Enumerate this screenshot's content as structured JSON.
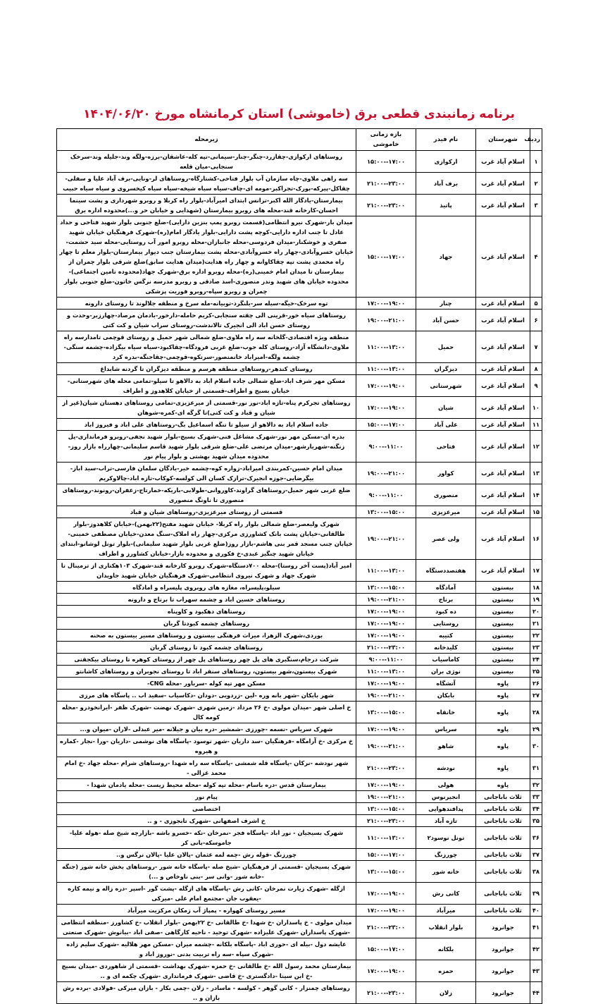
{
  "title": "برنامه زمانبندی قطعی برق (خاموشی) استان کرمانشاه مورخ ۱۴۰۴/۰۶/۲۰",
  "headers": {
    "no": "ردیف",
    "city": "شهرستان",
    "feeder": "نام فیدر",
    "time": "بازه زمانی خاموشی",
    "zone": "زیرمحله"
  },
  "rows": [
    [
      "۱",
      "اسلام آباد غرب",
      "ارکوازی",
      "۱۵:۰۰--۱۷:۰۰",
      "روستاهای ارکوازی-چقازرد-چنگر-چنار-سیمانی-تپه کله-عاشقان-برزه-ولگه وند-جلیله وند-سرخک سنجابی-میان قلعه"
    ],
    [
      "۲",
      "اسلام آباد غرب",
      "برف آباد",
      "۲۱:۰۰--۲۳:۰۰",
      "سه راهی ملاوی-چاه سازمان آب بلوار فتاحی-کشتارگاه-روستاهای لر-ونایی-برف آباد علیا و سفلی-چقاکل-پیرکه-بورک-تجراکبر-مومه ای-چاف-سیاه سیاه شیخه-سیاه سیاه کیخسروی و سیاه سیاه حبیب"
    ],
    [
      "۳",
      "اسلام آباد غرب",
      "پاتیذ",
      "۲۱:۰۰--۲۳:۰۰",
      "بیمارستان-یادگار الله اکبر-ترانس ابتدای امیرآباد-بلوار راه کربلا و روبرو شهرداری و پشت سینما احسان-کارخانه قند-محله های روبرو بیمارستان (شهدایی و خیابان حر و...)محدوده اداره برق"
    ],
    [
      "۴",
      "اسلام آباد غرب",
      "جهاد",
      "۱۵:۰۰--۱۷:۰۰",
      "میدان بار-شهرک نیرو انتظامی(قسمت روبرو پمپ بنزین دارایی)-ضلع جنوبی بلوار شهید فتاحی و حداد عادل تا جنب اداره دارایی-کوچه پشت دارایی-بلوار یادگار امام(ره)-شهرک فرهنگیان خیابان شهید صفری و خوشکنار-میدان فردوسی-محله جانبازان-محله روبرو امور آب روستایی-محله سید حشمت-خیابان خسروآبادی-چهار راه خسروآبادی-محله پشت بیمارستان جنب دیوار بیمارستان-بلوار معلم تا چهار راه محمدی پشت تپه چقاکاوانه و چهار راه هدایت(میدان هدایت سابق)ضلع شرقی بلوار چمران از بیمارستان تا میدان امام خمینی(ره)-محله روبرو اداره برق-شهرک جهاد(محدوده تامین اجتماعی)-محدوده خیابان های شهید وندر منصوری-اسد صادقی و روبرو مدرسه نرگس خاتون-ضلع جنوبی بلوار چمران و روبرو سپاه-روبرو فوریت پزشکی"
    ],
    [
      "۵",
      "اسلام آباد غرب",
      "چنار",
      "۱۷:۰۰--۱۹:۰۰",
      "توه سرخک-خیگه-سیله سر-بلنگرد-توبیانه-مله سرخ و منطقه جلالوند تا روستای دارونه"
    ],
    [
      "۶",
      "اسلام آباد غرب",
      "حسن آباد",
      "۱۹:۰۰--۲۱:۰۰",
      "روستاهای سیاه خور-قرینی الی چقته سنجابی-کریم حامله-دارخور-بادمان مرصاد-چهارزبر-وحدت و روستای حسن اباد الی انجیرک تالاندشت-روستای سراب شیان و کت کتی"
    ],
    [
      "۷",
      "اسلام آباد غرب",
      "حمیل",
      "۱۱:۰۰--۱۳:۰۰",
      "منطقه ویژه اقتصادی-گلخانه سه راه ملاوی-ضلع شمالی شهر حمیل و روستای قوچمی تامدارسه راه ملاوی-دانشگاه آزاد-روستای کله جوب-ضلع غربی فرودگاه-چقاکبود-سیاه سیاه بیگزاده-چشمه سنگی-چشمه ولگه-امیراباد خانمنصور-سرتکوه-قوچمی-چقاجنگه-بدره کرد"
    ],
    [
      "۸",
      "اسلام آباد غرب",
      "دیزگران",
      "۱۱:۰۰--۱۳:۰۰",
      "روستای کندهر-روستاهای منطقه هرسم و منطقه دیزگران تا گردنه شابداغ"
    ],
    [
      "۹",
      "اسلام آباد غرب",
      "شهرستانی",
      "۱۷:۰۰--۱۹:۰۰",
      "مسکن مهر شرف اباد-ضلع شمالی جاده اسلام اباد به دالاهو تا سیلو-تمامی محله های شهرستانی-خیابان بسیج و اطراف-قسمتی از خیابان کلاهدوز و اطراف"
    ],
    [
      "۱۰",
      "اسلام آباد غرب",
      "شیان",
      "۱۷:۰۰--۱۹:۰۰",
      "روستاهای تجرکرم پناه-تازه اباد-نور نور-قسمتی از میرعزیزی-تمامی روستاهای دهستان شیان(غیر از شیان و قباد و کت کتی)تا گرگه ای-کمره-شوهان"
    ],
    [
      "۱۱",
      "اسلام آباد غرب",
      "علی آباد",
      "۱۵:۰۰--۱۷:۰۰",
      "جاده اسلام اباد به دالاهو از سیلو تا تنگه اسماعیل بگ-روستاهای علی اباد و فیروز اباد"
    ],
    [
      "۱۲",
      "اسلام آباد غرب",
      "فتاحی",
      "۹:۰۰--۱۱:۰۰",
      "بدره ای-مسکن مهر نور-شهرک مشاغل فنی-شهرک بسیج-بلوار شهید نجفی-روبرو فرمانداری-پل زنگنه-شهریارشهر-میدان مرتضی علی-ضلع شرقی بلوار شهید قاسم سلیمانی-چهارراه بازار روز-محدوده میدان شهید بهشتی و بلوار پیام نور"
    ],
    [
      "۱۳",
      "اسلام آباد غرب",
      "کواور",
      "۱۹:۰۰--۲۱:۰۰",
      "میدان امام حسین-کمربندی امیراباد-زواره کوه-چشمه خیر-یادگان سلمان فارسی-تراب-سید اباز-بیگرضایی-جوزه انجیرک-ترازک کسان الی کولسه-کوکاب-تازه اباد-چالاوکریم"
    ],
    [
      "۱۴",
      "اسلام آباد غرب",
      "منصوری",
      "۹:۰۰--۱۱:۰۰",
      "ضلع غربی شهر حمیل-روستاهای گراوند-کاوروانی-طولابی-باریکه-خمارتاج-زعفران-رونوند-روستاهای منصوری تا ناونگ منصوری"
    ],
    [
      "۱۵",
      "اسلام آباد غرب",
      "میرعزیزی",
      "۱۳:۰۰--۱۵:۰۰",
      "قسمتی از روستای میرعزیزی-روستاهای شیان و قباد"
    ],
    [
      "۱۶",
      "اسلام آباد غرب",
      "ولی عصر",
      "۱۹:۰۰--۲۱:۰۰",
      "شهرک ولیعصر-ضلع شمالی بلوار راه کربلا- خیابان شهید مفتح(۲۲بهمن)-خیابان کلاهدوز-بلوار طالقانی-خیابان پشت بانک کشاورزی مرکزی-چهار راه املاک-سنگ معدن-خیابان مصطفی خمینی-خیابان جنب مسجد قمر بنی هاشم-بازار روز(ضلع غربی بلوار شهید سلیمانی)-بلوار تونل لوشانو-ابتدای خیابان شهید چنگیز عبدی-خ فکوری و محدوده بازار-خیابان کشاورز و اطراف"
    ],
    [
      "۱۷",
      "اسلام آباد غرب",
      "هفتصددستگاه",
      "۱۱:۰۰--۱۳:۰۰",
      "امیر آباد(پست آخر روستا)-محله ۷۰۰دستگاه-شهرک روبرو کارخانه قند-شهرک ۱۰۳هکتاری از ترمینال تا شهرک جهاد و شهرک نیروی انتظامی-شهرک فرهنگیان خیابان شهید جاویدان"
    ],
    [
      "۱۸",
      "بیستون",
      "آمادگاه",
      "۱۳:۰۰--۱۵:۰۰",
      "سیلو،پلیسراه، مغازه های روبروی پلیسراه و امادگاه"
    ],
    [
      "۱۹",
      "بیستون",
      "برناج",
      "۱۹:۰۰--۲۱:۰۰",
      "روستاهای حسین اباد و چشمه سهراب تا برناج و دارونه"
    ],
    [
      "۲۰",
      "بیستون",
      "ده کبود",
      "۱۷:۰۰--۱۹:۰۰",
      "روستاهای دهکبود و کاوپناه"
    ],
    [
      "۲۱",
      "بیستون",
      "روستایی",
      "۱۷:۰۰--۱۹:۰۰",
      "روستاهای چشمه کبودتا گربان"
    ],
    [
      "۲۲",
      "بیستون",
      "کتیبه",
      "۱۷:۰۰--۱۹:۰۰",
      "بوردی،شهرک الزهرا، میراث فرهنگی بیستون و روستاهای مسیر بیستون به صحنه"
    ],
    [
      "۲۳",
      "بیستون",
      "کلیدخانه",
      "۲۱:۰۰--۲۳:۰۰",
      "روستاهای چشمه کبود تا روستای گربان"
    ],
    [
      "۲۴",
      "بیستون",
      "کاماسیاب",
      "۹:۰۰--۱۱:۰۰",
      "شرکت درجام،سنگبری های پل چهر روستاهای پل چهر از روستای کوهره تا روستای بیکجقنی"
    ],
    [
      "۲۵",
      "بیستون",
      "نوژی بران",
      "۱۱:۰۰--۱۳:۰۰",
      "شهرک بیستون،شهر بیستون، روستاهای سنقر اباد تا روستای نجوبران و روستاهای کاشانتو"
    ],
    [
      "۲۶",
      "پاوه",
      "آتشگاه",
      "۱۷:۰۰--۱۹:۰۰",
      "مسکن مهر تپه کوله -سرباور -محله CNG-"
    ],
    [
      "۲۷",
      "پاوه",
      "بابکان",
      "۱۹:۰۰--۲۱:۰۰",
      "شهر بابکان -شهر بانه وره -لین -زردویی -دودان -دکاسیاب -سفید اب .. پاسگاه های مرزی"
    ],
    [
      "۲۸",
      "پاوه",
      "خانقاه",
      "۱۳:۰۰--۱۵:۰۰",
      "خ اصلی شهر -میدان مولوی -خ ۲۶ مرداد -زمین شهری -شهرک نهضت -شهرک ظفر -ایرانخودرو -محله کومه کال"
    ],
    [
      "۲۹",
      "پاوه",
      "سریاس",
      "۱۷:۰۰--۱۹:۰۰",
      "شهرک سریاس -نسمه -چورزی -شمشیر -دره بیان و جیلانه -میر عبدلی -لاران -میوان و..."
    ],
    [
      "۳۰",
      "پاوه",
      "شاهو",
      "۱۹:۰۰--۲۱:۰۰",
      "خ مرکزی -خ آرامگاه -فرهنگیان -سد داریان -شهر نوسود -پاسگاه های نوشمی -داریان -ورا -نجار -کماره و هیروه"
    ],
    [
      "۳۱",
      "پاوه",
      "نودشه",
      "۲۱:۰۰--۲۳:۰۰",
      "شهر نودشه -نرکان -پاسگاه قله شمشی -پاسگاه سه راه شهدا -روستاهای شرام -محله جهاد -خ امام محمد غزالی -"
    ],
    [
      "۳۲",
      "پاوه",
      "هولی",
      "۱۷:۰۰--۱۹:۰۰",
      "بیمارستان قدس -دره باسام -محله تپه کوله -محله محیط زیست -محله یادمان شهدا -"
    ],
    [
      "۳۳",
      "ثلاث باباجانی",
      "انجیرنوس",
      "۱۹:۰۰--۲۱:۰۰",
      "پیام نور"
    ],
    [
      "۳۴",
      "ثلاث باباجانی",
      "پدافندهوایی",
      "۱۳:۰۰--۱۵:۰۰",
      "اختصاصی"
    ],
    [
      "۳۵",
      "ثلاث باباجانی",
      "تازه آباد",
      "۲۱:۰۰--۲۳:۰۰",
      "خ اشرف اصفهانی -شهرک تابجوزی - و .."
    ],
    [
      "۳۶",
      "ثلاث باباجانی",
      "تونل نوسود۲",
      "۱۱:۰۰--۱۳:۰۰",
      "شهرک بسیجیان - نور اباد -پاسگاه فجر -نمرخان -نکه -خسرو باشه -بازارچه شیخ صله -هوله علیا-جاموسکه-بانی کر"
    ],
    [
      "۳۷",
      "ثلاث باباجانی",
      "چورزنگ",
      "۱۵:۰۰--۱۷:۰۰",
      "چورزنگ -قوله رش -چمه لمه عثمان -پالان علیا -پالان نرگس و.."
    ],
    [
      "۳۸",
      "ثلاث باباجانی",
      "خانه شور",
      "۱۳:۰۰--۱۵:۰۰",
      "شهرک بسیجیان -قسمتی از فرهنگیان -شیخ صله -پاسگاه خانه شور -روستاهای بخش خانه شور (جنگه -خانه شور -وانی سر -بنی ناوخاص و ...)"
    ],
    [
      "۳۹",
      "ثلاث باباجانی",
      "کانی رش",
      "۱۷:۰۰--۱۹:۰۰",
      "ازگله -شهرک زیارت نمرخان -کانی رش -پاسگاه های ازگله -پشت گور -اسپر -دره زاله و نیمه کاره -یعقوب جان -مجتمع امام علی -میرکی"
    ],
    [
      "۴۰",
      "ثلاث باباجانی",
      "میرآباد",
      "۱۷:۰۰--۱۹:۰۰",
      "مسیر روستای کهواره - پمپاژ آب زمکان مرکزیت میرآباد"
    ],
    [
      "۴۱",
      "جوانرود",
      "بلوار انقلاب",
      "۲۱:۰۰--۲۳:۰۰",
      "میدان مولوی - خ پاسداران -خ شهدا -خ طالقانی -خ ۲۲بهمن -بلوار انقلاب -خ کشاورز -منطقه انتظامی -شهرک پاسداران -شهرک علیزاده -شهرک توحید - ناحیه کارگاهی -صفی اباد -بیانوش -شهرک صنعتی"
    ],
    [
      "۴۲",
      "جوانرود",
      "بلکانه",
      "۱۵:۰۰--۱۷:۰۰",
      "عایشه دول -بیله ای -حوری اباد -پاسگاه بلکانه -چشمه میران -مسکن مهر هلالیه -شهرک سلیم زاده -شهرک سپاه -سه راه تربیت بدنی -نوروز اباد و"
    ],
    [
      "۴۳",
      "جوانرود",
      "حمزه",
      "۱۷:۰۰--۱۹:۰۰",
      "بیمارستان محمد رسول الله -خ طالقانی -خ حمزه -شهرک بهداشت -قسمتی از شاهوردی -میدان بسیج -خ ابن سینا -دادگستری -خ قاضی -شهرک فرمانداری -شهرک چکمه ای و .."
    ],
    [
      "۴۴",
      "جوانرود",
      "زلان",
      "۲۱:۰۰--۲۳:۰۰",
      "روستاهای چمنزار - کانی گوهر - کولسه - ماسادر - زلان -چمی بکار - بازان میرکی -فولادی -برده رش بازان و .."
    ]
  ],
  "colors": {
    "title": "#c8102e",
    "border": "#000000"
  }
}
